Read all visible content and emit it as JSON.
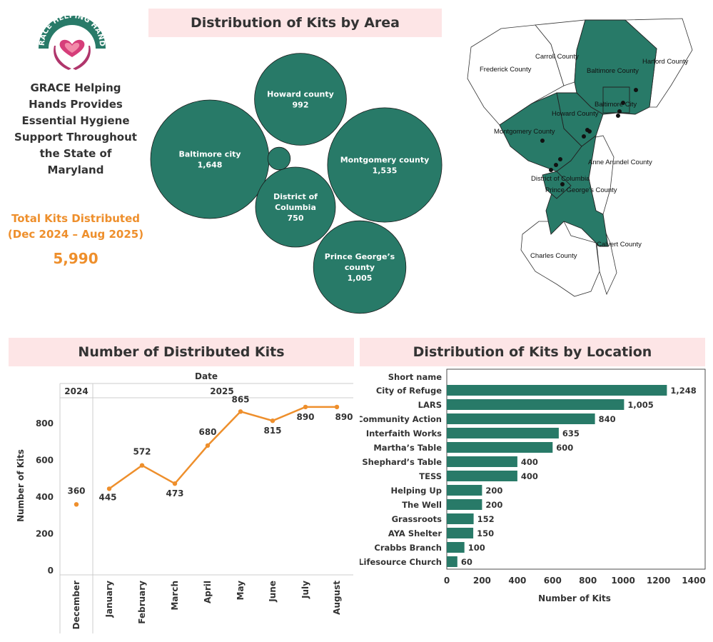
{
  "brand": {
    "logo_text": "GRACE HELPING HANDS",
    "heading": "GRACE Helping Hands Provides Essential Hygiene Support Throughout the State of Maryland",
    "colors": {
      "green": "#287a68",
      "orange": "#ee8f2c",
      "pink": "#fde5e6",
      "logo_magenta": "#b0366c"
    }
  },
  "kpi": {
    "label_line1": "Total Kits Distributed",
    "label_line2": "(Dec 2024 – Aug 2025)",
    "value": "5,990"
  },
  "area": {
    "title": "Distribution of Kits by Area",
    "bubbles": [
      {
        "name": "Baltimore city",
        "label_lines": [
          "Baltimore city"
        ],
        "value_label": "1,648",
        "value": 1648
      },
      {
        "name": "Howard county",
        "label_lines": [
          "Howard county"
        ],
        "value_label": "992",
        "value": 992
      },
      {
        "name": "Montgomery county",
        "label_lines": [
          "Montgomery county"
        ],
        "value_label": "1,535",
        "value": 1535
      },
      {
        "name": "District of Columbia",
        "label_lines": [
          "District of",
          "Columbia"
        ],
        "value_label": "750",
        "value": 750
      },
      {
        "name": "Prince George's county",
        "label_lines": [
          "Prince George’s",
          "county"
        ],
        "value_label": "1,005",
        "value": 1005
      },
      {
        "name": "unlabeled",
        "label_lines": [],
        "value_label": "",
        "value": 60
      }
    ]
  },
  "map": {
    "labels": {
      "carroll": "Carroll County",
      "harford": "Harford County",
      "frederick": "Frederick County",
      "baltimore_county": "Baltimore County",
      "baltimore_city": "Baltimore City",
      "howard": "Howard County",
      "montgomery": "Montgomery County",
      "anne_arundel": "Anne Arundel County",
      "dc": "District of Columbia",
      "prince_georges": "Prince George's County",
      "calvert": "Calvert County",
      "charles": "Charles County"
    }
  },
  "line": {
    "title": "Number of Distributed Kits",
    "date_header": "Date",
    "year_2024": "2024",
    "year_2025": "2025",
    "y_title": "Number of Kits",
    "y_ticks": [
      "0",
      "200",
      "400",
      "600",
      "800"
    ]
  },
  "bars": {
    "title": "Distribution of Kits by Location",
    "header": "Short name",
    "x_title": "Number of Kits",
    "x_ticks": [
      "0",
      "200",
      "400",
      "600",
      "800",
      "1000",
      "1200",
      "1400"
    ]
  },
  "chart_data": [
    {
      "type": "scatter",
      "title": "Distribution of Kits by Area",
      "categories": [
        "Baltimore city",
        "Howard county",
        "Montgomery county",
        "District of Columbia",
        "Prince George’s county"
      ],
      "values": [
        1648,
        992,
        1535,
        750,
        1005
      ]
    },
    {
      "type": "line",
      "title": "Number of Distributed Kits",
      "xlabel": "Date",
      "ylabel": "Number of Kits",
      "ylim": [
        0,
        940
      ],
      "x": [
        "December",
        "January",
        "February",
        "March",
        "April",
        "May",
        "June",
        "July",
        "August"
      ],
      "years": [
        "2024",
        "2025",
        "2025",
        "2025",
        "2025",
        "2025",
        "2025",
        "2025",
        "2025"
      ],
      "values": [
        360,
        445,
        572,
        473,
        680,
        865,
        815,
        890,
        890
      ],
      "value_labels": [
        "360",
        "445",
        "572",
        "473",
        "680",
        "865",
        "815",
        "890",
        "890"
      ]
    },
    {
      "type": "bar",
      "title": "Distribution of Kits by Location",
      "xlabel": "Number of Kits",
      "ylabel": "Short name",
      "xlim": [
        0,
        1400
      ],
      "categories": [
        "City of Refuge",
        "LARS",
        "Community Action",
        "Interfaith Works",
        "Martha’s Table",
        "Shephard’s Table",
        "TESS",
        "Helping Up",
        "The Well",
        "Grassroots",
        "AYA Shelter",
        "Crabbs Branch",
        "Lifesource Church"
      ],
      "values": [
        1248,
        1005,
        840,
        635,
        600,
        400,
        400,
        200,
        200,
        152,
        150,
        100,
        60
      ],
      "value_labels": [
        "1,248",
        "1,005",
        "840",
        "635",
        "600",
        "400",
        "400",
        "200",
        "200",
        "152",
        "150",
        "100",
        "60"
      ]
    }
  ]
}
